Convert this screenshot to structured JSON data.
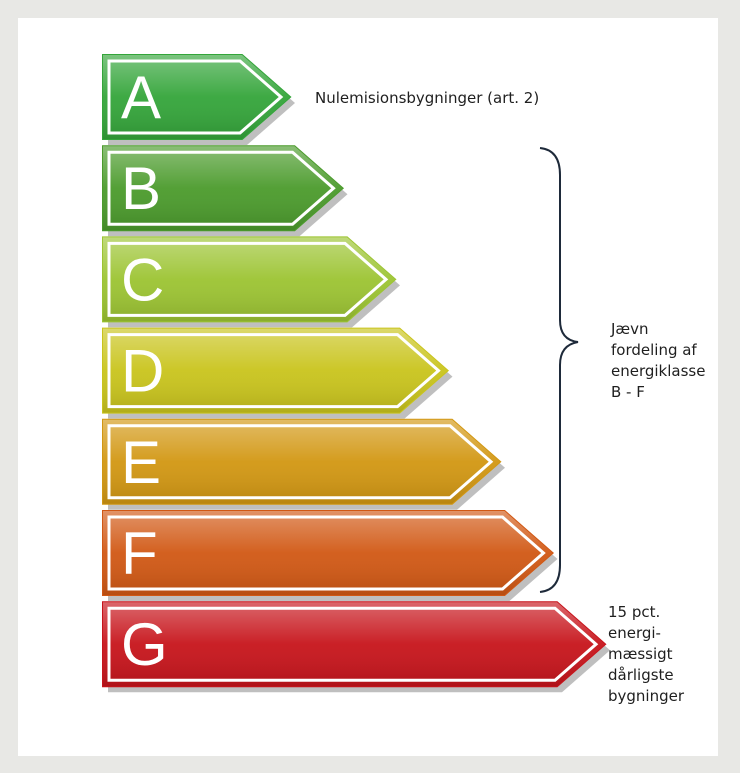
{
  "classes": [
    {
      "letter": "A",
      "color": "#34a53a"
    },
    {
      "letter": "B",
      "color": "#4b9b2c"
    },
    {
      "letter": "C",
      "color": "#9cc432"
    },
    {
      "letter": "D",
      "color": "#c9c41c"
    },
    {
      "letter": "E",
      "color": "#d29712"
    },
    {
      "letter": "F",
      "color": "#d15814"
    },
    {
      "letter": "G",
      "color": "#c7141b"
    }
  ],
  "annotation_a": "Nulemisionsbygninger (art. 2)",
  "bracket_label": [
    "Jævn",
    "fordeling af",
    "energiklasse",
    "B - F"
  ],
  "g_label": [
    "15 pct.",
    "energi-",
    "mæssigt",
    "dårligste",
    "bygninger"
  ]
}
